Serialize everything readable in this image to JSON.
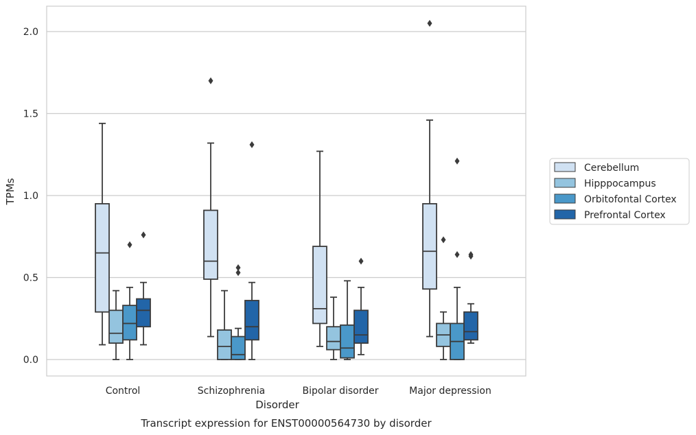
{
  "chart_data": {
    "type": "box",
    "caption": "Transcript expression for ENST00000564730 by disorder",
    "xlabel": "Disorder",
    "ylabel": "TPMs",
    "ylim": [
      -0.1,
      2.15
    ],
    "yticks": [
      0.0,
      0.5,
      1.0,
      1.5,
      2.0
    ],
    "ytick_labels": [
      "0.0",
      "0.5",
      "1.0",
      "1.5",
      "2.0"
    ],
    "grid": "horizontal",
    "legend_placement": "right",
    "categories": [
      "Control",
      "Schizophrenia",
      "Bipolar disorder",
      "Major depression"
    ],
    "series": [
      {
        "name": "Cerebellum",
        "color": "#d0e1f2",
        "boxes": [
          {
            "whisker_low": 0.09,
            "q1": 0.29,
            "median": 0.65,
            "q3": 0.95,
            "whisker_high": 1.44,
            "outliers": []
          },
          {
            "whisker_low": 0.14,
            "q1": 0.49,
            "median": 0.6,
            "q3": 0.91,
            "whisker_high": 1.32,
            "outliers": [
              1.7
            ]
          },
          {
            "whisker_low": 0.08,
            "q1": 0.22,
            "median": 0.31,
            "q3": 0.69,
            "whisker_high": 1.27,
            "outliers": []
          },
          {
            "whisker_low": 0.14,
            "q1": 0.43,
            "median": 0.66,
            "q3": 0.95,
            "whisker_high": 1.46,
            "outliers": [
              2.05
            ]
          }
        ]
      },
      {
        "name": "Hipppocampus",
        "color": "#94c4df",
        "boxes": [
          {
            "whisker_low": 0.0,
            "q1": 0.1,
            "median": 0.16,
            "q3": 0.3,
            "whisker_high": 0.42,
            "outliers": []
          },
          {
            "whisker_low": 0.0,
            "q1": 0.0,
            "median": 0.08,
            "q3": 0.18,
            "whisker_high": 0.42,
            "outliers": []
          },
          {
            "whisker_low": 0.0,
            "q1": 0.06,
            "median": 0.11,
            "q3": 0.2,
            "whisker_high": 0.38,
            "outliers": []
          },
          {
            "whisker_low": 0.0,
            "q1": 0.08,
            "median": 0.15,
            "q3": 0.22,
            "whisker_high": 0.29,
            "outliers": [
              0.73
            ]
          }
        ]
      },
      {
        "name": "Orbitofontal Cortex",
        "color": "#4a98c9",
        "boxes": [
          {
            "whisker_low": 0.0,
            "q1": 0.12,
            "median": 0.22,
            "q3": 0.33,
            "whisker_high": 0.44,
            "outliers": [
              0.7
            ]
          },
          {
            "whisker_low": 0.0,
            "q1": 0.0,
            "median": 0.03,
            "q3": 0.14,
            "whisker_high": 0.19,
            "outliers": [
              0.53,
              0.56
            ]
          },
          {
            "whisker_low": 0.0,
            "q1": 0.01,
            "median": 0.07,
            "q3": 0.21,
            "whisker_high": 0.48,
            "outliers": []
          },
          {
            "whisker_low": 0.0,
            "q1": 0.0,
            "median": 0.11,
            "q3": 0.22,
            "whisker_high": 0.44,
            "outliers": [
              0.64,
              1.21
            ]
          }
        ]
      },
      {
        "name": "Prefrontal Cortex",
        "color": "#2265a8",
        "boxes": [
          {
            "whisker_low": 0.09,
            "q1": 0.2,
            "median": 0.3,
            "q3": 0.37,
            "whisker_high": 0.47,
            "outliers": [
              0.76
            ]
          },
          {
            "whisker_low": 0.0,
            "q1": 0.12,
            "median": 0.2,
            "q3": 0.36,
            "whisker_high": 0.47,
            "outliers": [
              1.31
            ]
          },
          {
            "whisker_low": 0.03,
            "q1": 0.1,
            "median": 0.15,
            "q3": 0.3,
            "whisker_high": 0.44,
            "outliers": [
              0.6
            ]
          },
          {
            "whisker_low": 0.1,
            "q1": 0.12,
            "median": 0.17,
            "q3": 0.29,
            "whisker_high": 0.34,
            "outliers": [
              0.63,
              0.64
            ]
          }
        ]
      }
    ]
  }
}
